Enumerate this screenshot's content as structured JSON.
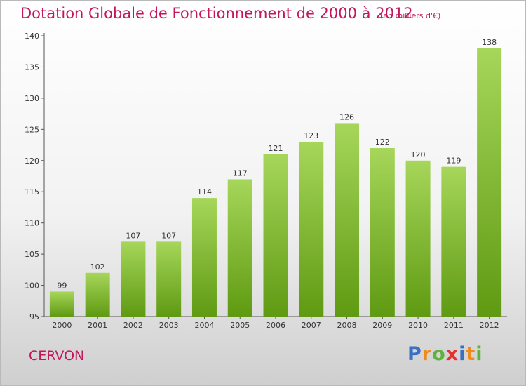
{
  "title": "Dotation Globale de Fonctionnement de 2000 à 2012",
  "subtitle": "(en milliers d'€)",
  "commune": "CERVON",
  "logo": {
    "letters": [
      "P",
      "r",
      "o",
      "x",
      "i",
      "t",
      "i"
    ],
    "colors": [
      "#3a6fc4",
      "#f08a1c",
      "#5db33b",
      "#e8312f",
      "#3a6fc4",
      "#f08a1c",
      "#5db33b"
    ]
  },
  "colors": {
    "bar_top": "#a6d65a",
    "bar_bottom": "#5f9a12",
    "title": "#c2185b"
  },
  "chart_data": {
    "type": "bar",
    "categories": [
      "2000",
      "2001",
      "2002",
      "2003",
      "2004",
      "2005",
      "2006",
      "2007",
      "2008",
      "2009",
      "2010",
      "2011",
      "2012"
    ],
    "values": [
      99,
      102,
      107,
      107,
      114,
      117,
      121,
      123,
      126,
      122,
      120,
      119,
      138
    ],
    "ylim": [
      95,
      140
    ],
    "yticks": [
      95,
      100,
      105,
      110,
      115,
      120,
      125,
      130,
      135,
      140
    ],
    "xlabel": "",
    "ylabel": "",
    "grid": false
  }
}
